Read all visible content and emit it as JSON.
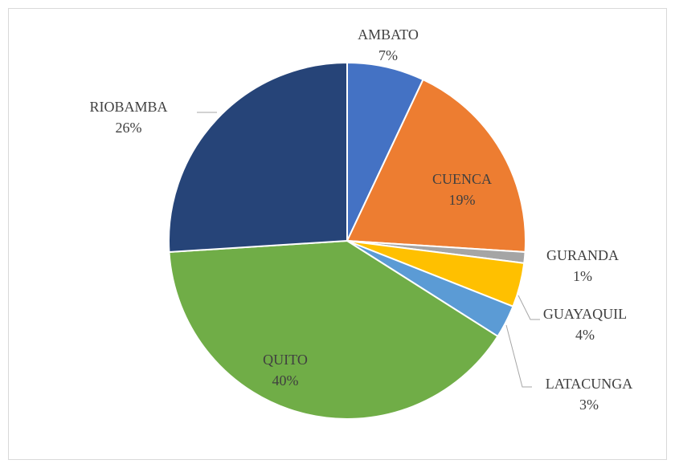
{
  "chart_data": {
    "type": "pie",
    "categories": [
      "AMBATO",
      "CUENCA",
      "GURANDA",
      "GUAYAQUIL",
      "LATACUNGA",
      "QUITO",
      "RIOBAMBA"
    ],
    "values": [
      7,
      19,
      1,
      4,
      3,
      40,
      26
    ],
    "value_labels": [
      "7%",
      "19%",
      "1%",
      "4%",
      "3%",
      "40%",
      "26%"
    ],
    "colors": [
      "#4472c4",
      "#ed7d31",
      "#a5a5a5",
      "#ffc000",
      "#5b9bd5",
      "#70ad47",
      "#264478"
    ]
  }
}
